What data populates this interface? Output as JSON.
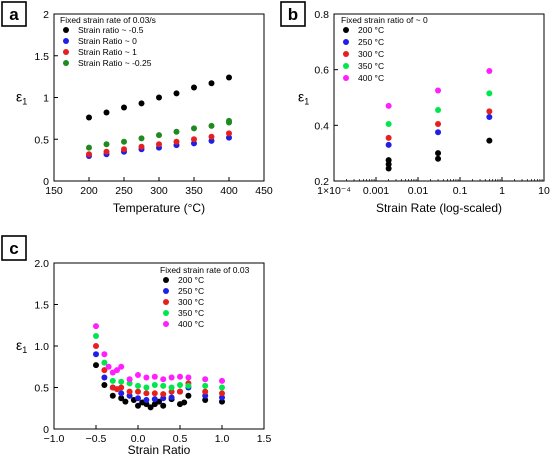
{
  "panels": [
    {
      "letter": "a",
      "legend_title": "Fixed strain rate of 0.03/s",
      "ylabel_main": "ε",
      "ylabel_sub": "1",
      "xlabel": "Temperature (°C)",
      "x_ticks": [
        150,
        200,
        250,
        300,
        350,
        400,
        450
      ],
      "y_ticks": [
        0,
        0.5,
        1.0,
        1.5,
        2.0
      ],
      "x_tick_labels": [
        "150",
        "200",
        "250",
        "300",
        "350",
        "400",
        "450"
      ],
      "y_tick_labels": [
        "0",
        "0.5",
        "1",
        "1.5",
        "2"
      ]
    },
    {
      "letter": "b",
      "legend_title": "Fixed strain ratio of ~ 0",
      "ylabel_main": "ε",
      "ylabel_sub": "1",
      "xlabel": "Strain Rate (log-scaled)",
      "x_ticks": [
        0.0001,
        0.001,
        0.01,
        0.1,
        1,
        10
      ],
      "y_ticks": [
        0.2,
        0.4,
        0.6,
        0.8
      ],
      "x_tick_labels": [
        "1×10⁻⁴",
        "0.001",
        "0.01",
        "0.1",
        "1",
        "10"
      ],
      "y_tick_labels": [
        "0.2",
        "0.4",
        "0.6",
        "0.8"
      ]
    },
    {
      "letter": "c",
      "legend_title": "Fixed strain rate of 0.03",
      "ylabel_main": "ε",
      "ylabel_sub": "1",
      "xlabel": "Strain Ratio",
      "x_ticks": [
        -1.0,
        -0.5,
        0.0,
        0.5,
        1.0,
        1.5
      ],
      "y_ticks": [
        0,
        0.5,
        1.0,
        1.5,
        2.0
      ],
      "x_tick_labels": [
        "−1.0",
        "−0.5",
        "0.0",
        "0.5",
        "1.0",
        "1.5"
      ],
      "y_tick_labels": [
        "0",
        "0.5",
        "1.0",
        "1.5",
        "2.0"
      ]
    }
  ],
  "chart_data": [
    {
      "type": "scatter",
      "xlim": [
        150,
        450
      ],
      "ylim": [
        0,
        2
      ],
      "legend_position": "top-left",
      "series": [
        {
          "name": "Strain ratio ~ -0.5",
          "color": "#000000",
          "x": [
            200,
            225,
            250,
            275,
            300,
            325,
            350,
            375,
            400
          ],
          "y": [
            0.76,
            0.82,
            0.88,
            0.93,
            1.0,
            1.05,
            1.12,
            1.17,
            1.24
          ]
        },
        {
          "name": "Strain Ratio ~ 0",
          "color": "#1f1fe6",
          "x": [
            200,
            225,
            250,
            275,
            300,
            325,
            350,
            375,
            400
          ],
          "y": [
            0.3,
            0.32,
            0.35,
            0.38,
            0.4,
            0.43,
            0.45,
            0.48,
            0.52
          ]
        },
        {
          "name": "Strain Ratio ~ 1",
          "color": "#e61f1f",
          "x": [
            200,
            225,
            250,
            275,
            300,
            325,
            350,
            375,
            400
          ],
          "y": [
            0.32,
            0.35,
            0.38,
            0.41,
            0.44,
            0.47,
            0.5,
            0.53,
            0.57
          ]
        },
        {
          "name": "Strain Ratio ~ -0.25",
          "color": "#1f8a1f",
          "x": [
            200,
            225,
            250,
            275,
            300,
            325,
            350,
            375,
            400,
            400
          ],
          "y": [
            0.4,
            0.44,
            0.47,
            0.51,
            0.55,
            0.59,
            0.63,
            0.66,
            0.7,
            0.72
          ]
        }
      ]
    },
    {
      "type": "scatter",
      "x_scale": "log",
      "xlim": [
        0.0001,
        10
      ],
      "ylim": [
        0.2,
        0.8
      ],
      "legend_position": "top-left",
      "series": [
        {
          "name": "200 °C",
          "color": "#000000",
          "x": [
            0.002,
            0.002,
            0.002,
            0.03,
            0.03,
            0.5
          ],
          "y": [
            0.245,
            0.26,
            0.275,
            0.28,
            0.3,
            0.345
          ]
        },
        {
          "name": "250 °C",
          "color": "#1f1fe6",
          "x": [
            0.002,
            0.03,
            0.5
          ],
          "y": [
            0.33,
            0.375,
            0.43
          ]
        },
        {
          "name": "300 °C",
          "color": "#e61f1f",
          "x": [
            0.002,
            0.03,
            0.5
          ],
          "y": [
            0.355,
            0.405,
            0.45
          ]
        },
        {
          "name": "350 °C",
          "color": "#00e64d",
          "x": [
            0.002,
            0.03,
            0.5
          ],
          "y": [
            0.405,
            0.455,
            0.515
          ]
        },
        {
          "name": "400 °C",
          "color": "#ff1fff",
          "x": [
            0.002,
            0.03,
            0.5
          ],
          "y": [
            0.47,
            0.525,
            0.595
          ]
        }
      ]
    },
    {
      "type": "scatter",
      "xlim": [
        -1.0,
        1.5
      ],
      "ylim": [
        0,
        2
      ],
      "legend_position": "top-right",
      "series": [
        {
          "name": "200 °C",
          "color": "#000000",
          "x": [
            -0.5,
            -0.4,
            -0.3,
            -0.2,
            -0.15,
            -0.05,
            0.0,
            0.05,
            0.1,
            0.15,
            0.2,
            0.25,
            0.3,
            0.4,
            0.5,
            0.55,
            0.6,
            0.8,
            1.0
          ],
          "y": [
            0.77,
            0.53,
            0.4,
            0.37,
            0.33,
            0.35,
            0.28,
            0.32,
            0.3,
            0.26,
            0.3,
            0.33,
            0.28,
            0.36,
            0.3,
            0.32,
            0.4,
            0.35,
            0.33
          ]
        },
        {
          "name": "250 °C",
          "color": "#1f1fe6",
          "x": [
            -0.5,
            -0.4,
            -0.3,
            -0.2,
            -0.1,
            0.0,
            0.1,
            0.2,
            0.3,
            0.4,
            0.5,
            0.6,
            0.8,
            1.0
          ],
          "y": [
            0.9,
            0.62,
            0.5,
            0.43,
            0.4,
            0.37,
            0.35,
            0.36,
            0.37,
            0.38,
            0.45,
            0.5,
            0.4,
            0.38
          ]
        },
        {
          "name": "300 °C",
          "color": "#e61f1f",
          "x": [
            -0.5,
            -0.4,
            -0.3,
            -0.25,
            -0.2,
            -0.1,
            0.0,
            0.1,
            0.2,
            0.3,
            0.4,
            0.5,
            0.6,
            0.8,
            1.0
          ],
          "y": [
            1.0,
            0.71,
            0.5,
            0.48,
            0.5,
            0.45,
            0.45,
            0.43,
            0.43,
            0.42,
            0.45,
            0.45,
            0.55,
            0.45,
            0.43
          ]
        },
        {
          "name": "350 °C",
          "color": "#00e64d",
          "x": [
            -0.5,
            -0.4,
            -0.3,
            -0.2,
            -0.1,
            0.0,
            0.1,
            0.2,
            0.3,
            0.4,
            0.5,
            0.6,
            0.8,
            1.0
          ],
          "y": [
            1.12,
            0.8,
            0.58,
            0.57,
            0.55,
            0.52,
            0.5,
            0.53,
            0.52,
            0.5,
            0.53,
            0.52,
            0.52,
            0.5
          ]
        },
        {
          "name": "400 °C",
          "color": "#ff1fff",
          "x": [
            -0.5,
            -0.4,
            -0.35,
            -0.3,
            -0.25,
            -0.2,
            -0.1,
            0.0,
            0.1,
            0.2,
            0.3,
            0.4,
            0.5,
            0.6,
            0.8,
            1.0
          ],
          "y": [
            1.24,
            0.9,
            0.75,
            0.68,
            0.71,
            0.75,
            0.6,
            0.65,
            0.62,
            0.63,
            0.6,
            0.62,
            0.63,
            0.62,
            0.6,
            0.58
          ]
        }
      ]
    }
  ]
}
